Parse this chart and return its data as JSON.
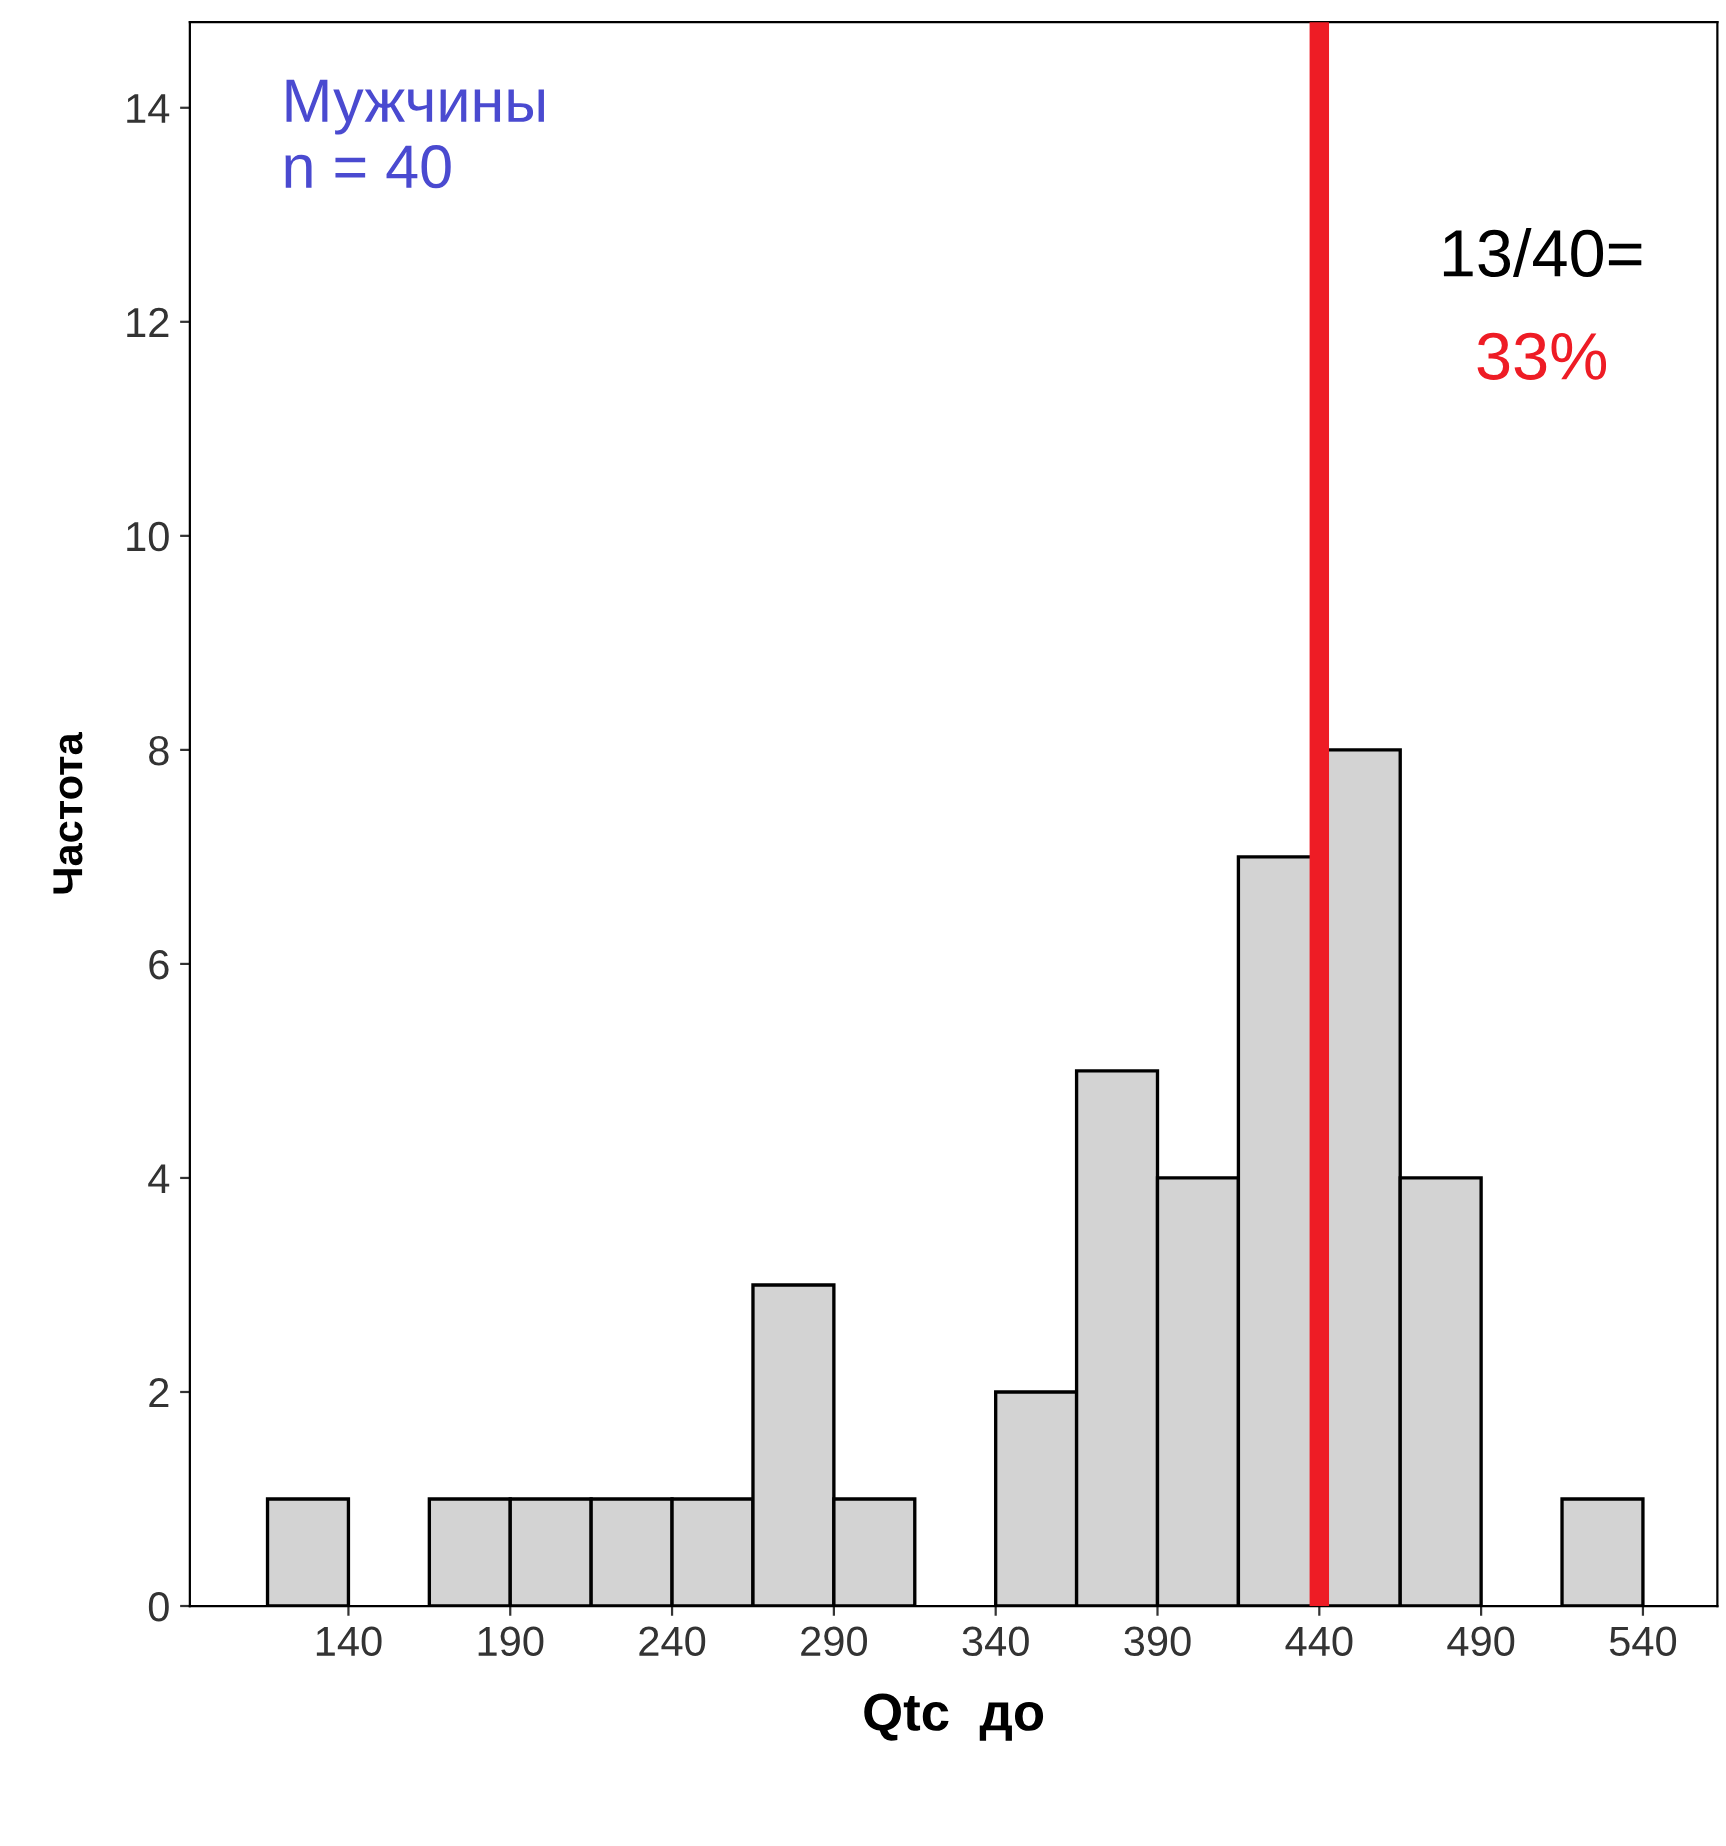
{
  "chart_data": {
    "type": "histogram",
    "xlabel": "Qtc  до",
    "ylabel": "Частота",
    "bins": [
      115,
      140,
      165,
      190,
      215,
      240,
      265,
      290,
      315,
      340,
      365,
      390,
      415,
      440,
      465,
      490,
      515,
      540
    ],
    "values": [
      1,
      0,
      1,
      1,
      1,
      1,
      3,
      1,
      0,
      2,
      5,
      4,
      7,
      8,
      4,
      0,
      1
    ],
    "color": "#d3d3d3",
    "xlim": [
      91,
      563
    ],
    "xticks": [
      140,
      190,
      240,
      290,
      340,
      390,
      440,
      490,
      540
    ],
    "ylim": [
      0,
      14.8
    ],
    "yticks": [
      0,
      2,
      4,
      6,
      8,
      10,
      12,
      14
    ],
    "grid": false,
    "ref_lines": [
      {
        "axis": "x",
        "value": 440,
        "label": null,
        "color": "#ee1c25",
        "line_style": "solid"
      }
    ],
    "annotations": [
      "Мужчины\nn = 40",
      "13/40=",
      "33%"
    ]
  }
}
